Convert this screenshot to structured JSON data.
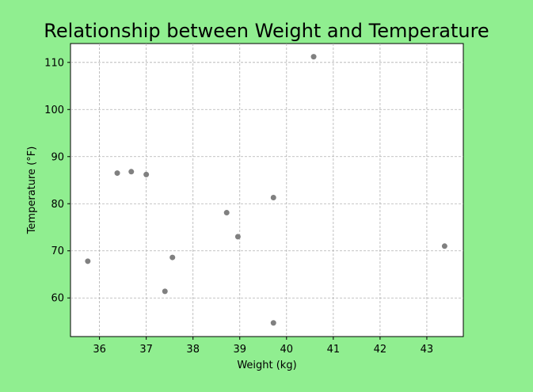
{
  "chart_data": {
    "type": "scatter",
    "title": "Relationship between Weight and Temperature",
    "xlabel": "Weight (kg)",
    "ylabel": "Temperature (°F)",
    "xlim": [
      35.38,
      43.78
    ],
    "ylim": [
      51.8,
      114.0
    ],
    "xticks": [
      36,
      37,
      38,
      39,
      40,
      41,
      42,
      43
    ],
    "yticks": [
      60,
      70,
      80,
      90,
      100,
      110
    ],
    "grid": true,
    "marker_color": "#808080",
    "background_color": "#90ee90",
    "series": [
      {
        "points": [
          {
            "x": 35.75,
            "y": 67.8
          },
          {
            "x": 36.38,
            "y": 86.5
          },
          {
            "x": 36.68,
            "y": 86.8
          },
          {
            "x": 37.0,
            "y": 86.2
          },
          {
            "x": 37.4,
            "y": 61.4
          },
          {
            "x": 37.56,
            "y": 68.6
          },
          {
            "x": 38.72,
            "y": 78.1
          },
          {
            "x": 38.96,
            "y": 73.0
          },
          {
            "x": 39.72,
            "y": 81.3
          },
          {
            "x": 39.72,
            "y": 54.7
          },
          {
            "x": 40.58,
            "y": 111.2
          },
          {
            "x": 43.38,
            "y": 71.0
          }
        ]
      }
    ]
  }
}
